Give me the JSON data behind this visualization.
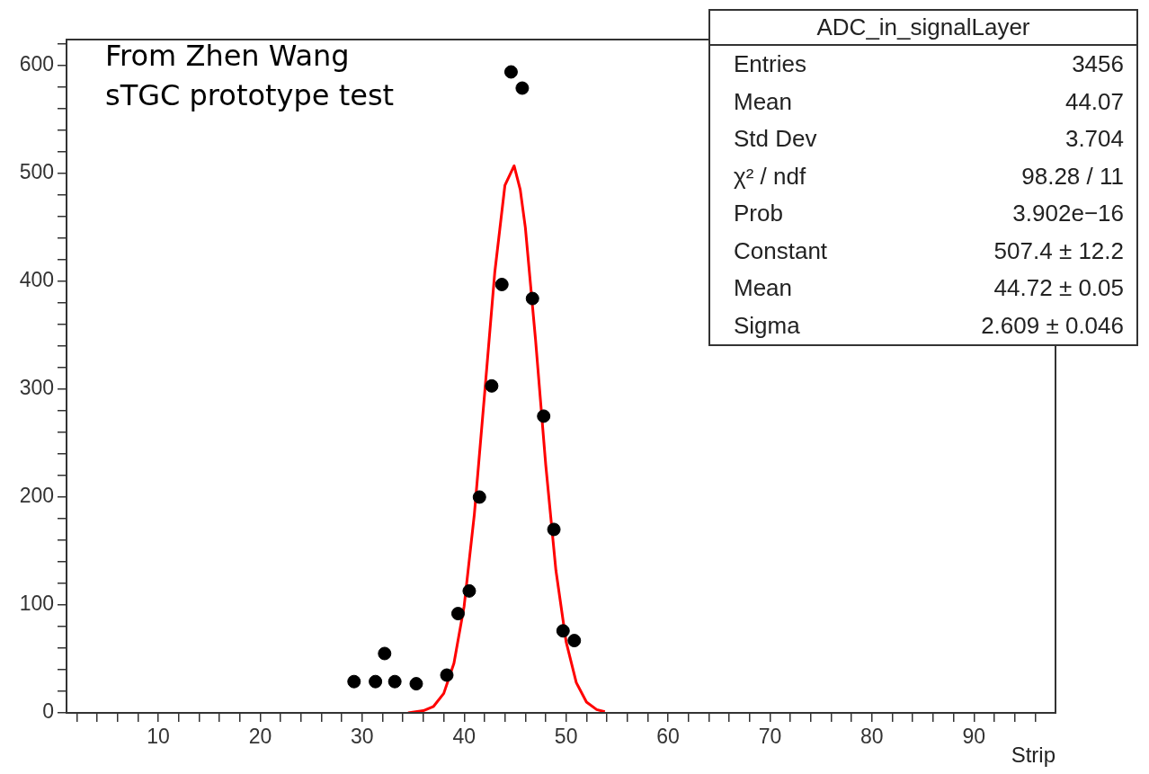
{
  "chart_data": {
    "type": "scatter",
    "title": "ADC_in_signalLayer",
    "xlabel": "Strip",
    "annotations": [
      "From Zhen Wang\nsTGC prototype test",
      "Entries",
      "3456",
      "Mean",
      "44.07",
      "Std Dev",
      "3.704",
      "χ² / ndf",
      "98.28 / 11",
      "Prob",
      "3.902e−16",
      "Constant",
      "507.4 ± 12.2",
      "Mean",
      "44.72 ± 0.05",
      "Sigma",
      "2.609 ± 0.046"
    ],
    "xlim": [
      1,
      98
    ],
    "ylim": [
      0,
      624
    ],
    "xticks": [
      {
        "value": 2,
        "label": null
      },
      {
        "value": 4,
        "label": null
      },
      {
        "value": 6,
        "label": null
      },
      {
        "value": 8,
        "label": null
      },
      10,
      {
        "value": 12,
        "label": null
      },
      {
        "value": 14,
        "label": null
      },
      {
        "value": 16,
        "label": null
      },
      {
        "value": 18,
        "label": null
      },
      20,
      {
        "value": 22,
        "label": null
      },
      {
        "value": 24,
        "label": null
      },
      {
        "value": 26,
        "label": null
      },
      {
        "value": 28,
        "label": null
      },
      30,
      {
        "value": 32,
        "label": null
      },
      {
        "value": 34,
        "label": null
      },
      {
        "value": 36,
        "label": null
      },
      {
        "value": 38,
        "label": null
      },
      40,
      {
        "value": 42,
        "label": null
      },
      {
        "value": 44,
        "label": null
      },
      {
        "value": 46,
        "label": null
      },
      {
        "value": 48,
        "label": null
      },
      50,
      {
        "value": 52,
        "label": null
      },
      {
        "value": 54,
        "label": null
      },
      {
        "value": 56,
        "label": null
      },
      {
        "value": 58,
        "label": null
      },
      60,
      {
        "value": 62,
        "label": null
      },
      {
        "value": 64,
        "label": null
      },
      {
        "value": 66,
        "label": null
      },
      {
        "value": 68,
        "label": null
      },
      70,
      {
        "value": 72,
        "label": null
      },
      {
        "value": 74,
        "label": null
      },
      {
        "value": 76,
        "label": null
      },
      {
        "value": 78,
        "label": null
      },
      80,
      {
        "value": 82,
        "label": null
      },
      {
        "value": 84,
        "label": null
      },
      {
        "value": 86,
        "label": null
      },
      {
        "value": 88,
        "label": null
      },
      90,
      {
        "value": 92,
        "label": null
      },
      {
        "value": 94,
        "label": null
      },
      {
        "value": 96,
        "label": null
      }
    ],
    "yticks": [
      0,
      {
        "value": 20,
        "label": null
      },
      {
        "value": 40,
        "label": null
      },
      {
        "value": 60,
        "label": null
      },
      {
        "value": 80,
        "label": null
      },
      100,
      {
        "value": 120,
        "label": null
      },
      {
        "value": 140,
        "label": null
      },
      {
        "value": 160,
        "label": null
      },
      {
        "value": 180,
        "label": null
      },
      200,
      {
        "value": 220,
        "label": null
      },
      {
        "value": 240,
        "label": null
      },
      {
        "value": 260,
        "label": null
      },
      {
        "value": 280,
        "label": null
      },
      300,
      {
        "value": 320,
        "label": null
      },
      {
        "value": 340,
        "label": null
      },
      {
        "value": 360,
        "label": null
      },
      {
        "value": 380,
        "label": null
      },
      400,
      {
        "value": 420,
        "label": null
      },
      {
        "value": 440,
        "label": null
      },
      {
        "value": 460,
        "label": null
      },
      {
        "value": 480,
        "label": null
      },
      500,
      {
        "value": 520,
        "label": null
      },
      {
        "value": 540,
        "label": null
      },
      {
        "value": 560,
        "label": null
      },
      {
        "value": 580,
        "label": null
      },
      600,
      {
        "value": 620,
        "label": null
      }
    ],
    "series": [
      {
        "type": "scatter",
        "marker": "circle",
        "color": "#000000",
        "x": [
          29.2,
          31.3,
          32.2,
          33.2,
          35.3,
          38.3,
          39.4,
          40.5,
          41.5,
          42.7,
          43.7,
          44.6,
          45.7,
          46.7,
          47.8,
          48.8,
          49.7,
          50.8
        ],
        "values": [
          29,
          29,
          55,
          29,
          27,
          35,
          92,
          113,
          200,
          303,
          397,
          594,
          579,
          384,
          275,
          170,
          76,
          67
        ]
      },
      {
        "type": "line",
        "marker": "none",
        "color": "#ff0000",
        "x": [
          34.5,
          36,
          37,
          38,
          39,
          40,
          41,
          42,
          43,
          44,
          44.9,
          45.5,
          46,
          47,
          48,
          49,
          50,
          51,
          52,
          53,
          53.8
        ],
        "values": [
          0,
          2,
          6,
          18,
          46,
          99,
          184,
          295,
          408,
          489,
          507,
          485,
          450,
          346,
          230,
          132,
          66,
          28,
          10,
          3,
          1
        ]
      }
    ]
  }
}
